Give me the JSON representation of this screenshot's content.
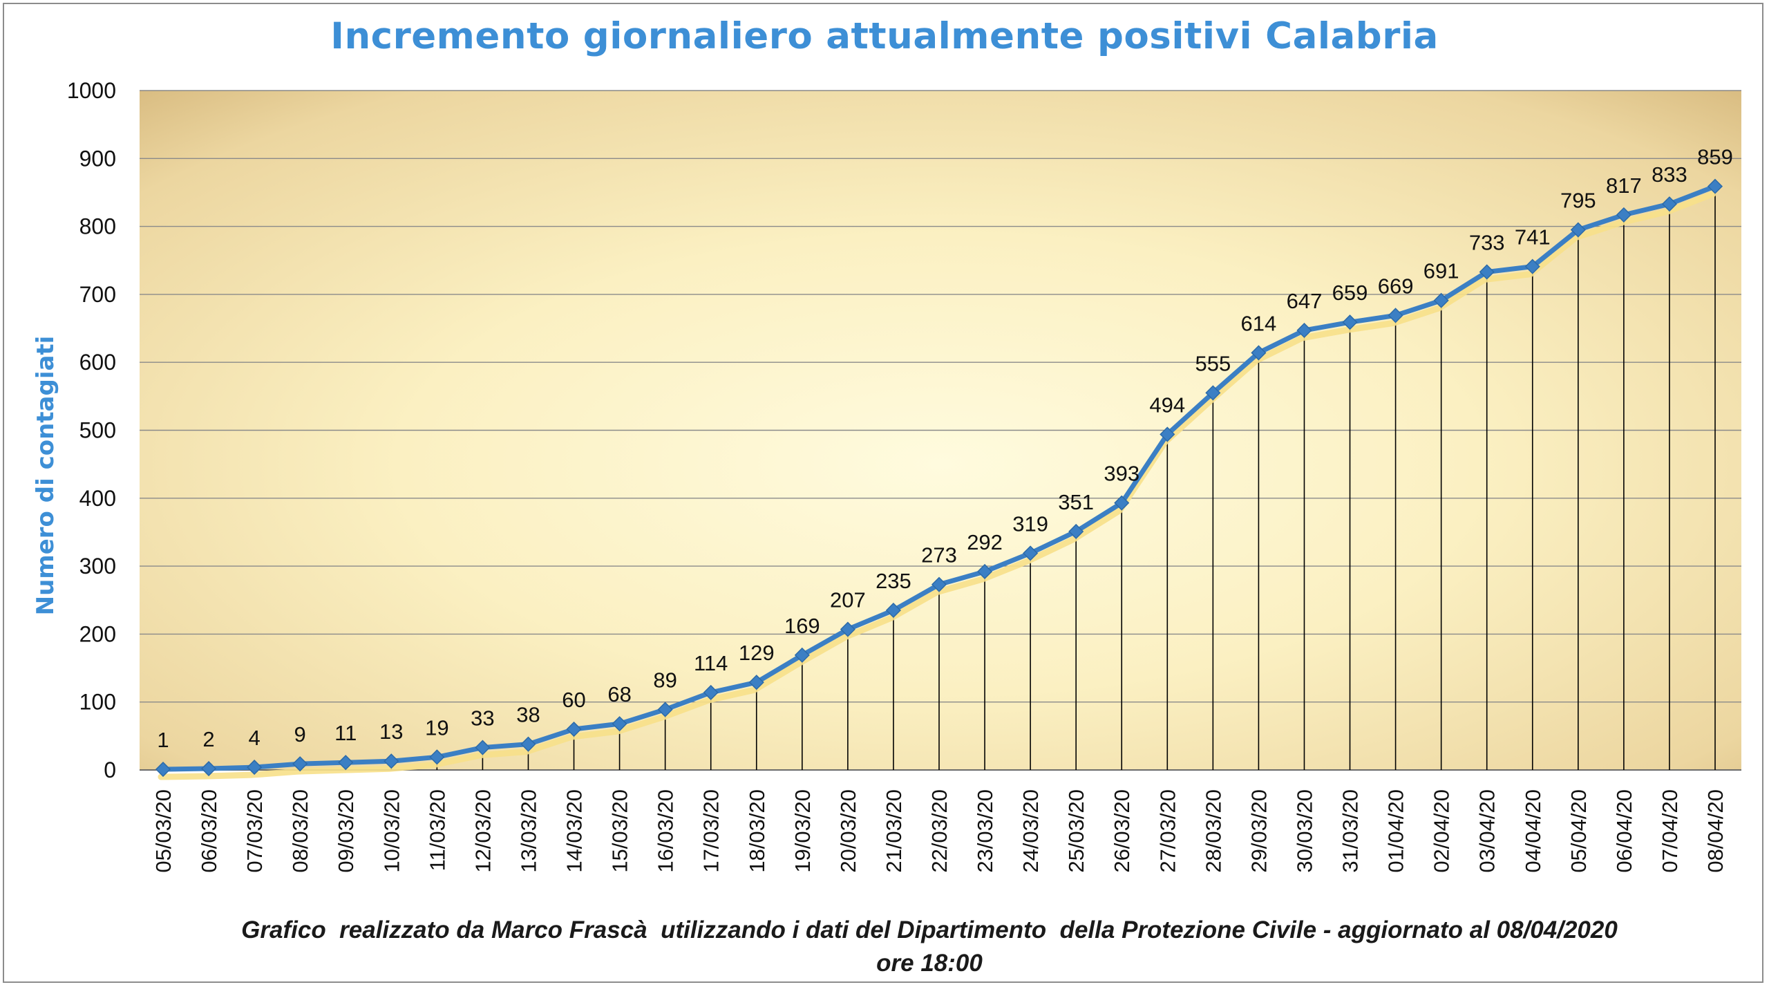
{
  "chart_data": {
    "type": "line",
    "title": "Incremento giornaliero attualmente positivi Calabria",
    "ylabel": "Numero di contagiati",
    "xlabel": "",
    "ylim": [
      0,
      1000
    ],
    "yticks": [
      0,
      100,
      200,
      300,
      400,
      500,
      600,
      700,
      800,
      900,
      1000
    ],
    "grid": true,
    "legend": "none",
    "categories": [
      "05/03/20",
      "06/03/20",
      "07/03/20",
      "08/03/20",
      "09/03/20",
      "10/03/20",
      "11/03/20",
      "12/03/20",
      "13/03/20",
      "14/03/20",
      "15/03/20",
      "16/03/20",
      "17/03/20",
      "18/03/20",
      "19/03/20",
      "20/03/20",
      "21/03/20",
      "22/03/20",
      "23/03/20",
      "24/03/20",
      "25/03/20",
      "26/03/20",
      "27/03/20",
      "28/03/20",
      "29/03/20",
      "30/03/20",
      "31/03/20",
      "01/04/20",
      "02/04/20",
      "03/04/20",
      "04/04/20",
      "05/04/20",
      "06/04/20",
      "07/04/20",
      "08/04/20"
    ],
    "series": [
      {
        "values": [
          1,
          2,
          4,
          9,
          11,
          13,
          19,
          33,
          38,
          60,
          68,
          89,
          114,
          129,
          169,
          207,
          235,
          273,
          292,
          319,
          351,
          393,
          494,
          555,
          614,
          647,
          659,
          669,
          691,
          733,
          741,
          795,
          817,
          833,
          859
        ]
      }
    ],
    "colors": {
      "line": "#3b7fc4",
      "marker": "#3b7fc4",
      "shadow": "#f7e08a",
      "title": "#3d8fd6",
      "drop_lines": "#000000"
    }
  },
  "footer": {
    "line1": "Grafico  realizzato da Marco Frascà  utilizzando i dati del Dipartimento  della Protezione Civile - aggiornato al 08/04/2020",
    "line2": "ore 18:00"
  }
}
